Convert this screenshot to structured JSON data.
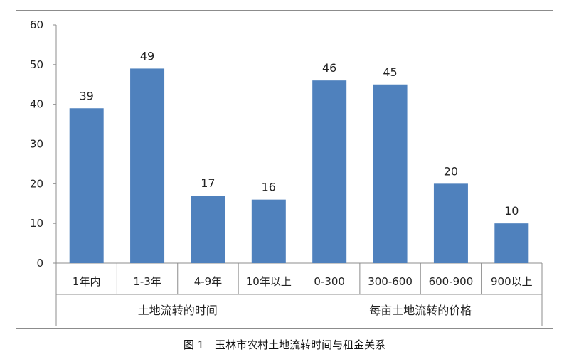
{
  "chart_data": {
    "type": "bar",
    "ylim": [
      0,
      60
    ],
    "yticks": [
      0,
      10,
      20,
      30,
      40,
      50,
      60
    ],
    "bar_color": "#4f81bd",
    "grid": false,
    "groups": [
      {
        "label": "土地流转的时间",
        "categories": [
          "1年内",
          "1-3年",
          "4-9年",
          "10年以上"
        ],
        "values": [
          39,
          49,
          17,
          16
        ]
      },
      {
        "label": "每亩土地流转的价格",
        "categories": [
          "0-300",
          "300-600",
          "600-900",
          "900以上"
        ],
        "values": [
          46,
          45,
          20,
          10
        ]
      }
    ]
  },
  "caption": "图 1　玉林市农村土地流转时间与租金关系"
}
